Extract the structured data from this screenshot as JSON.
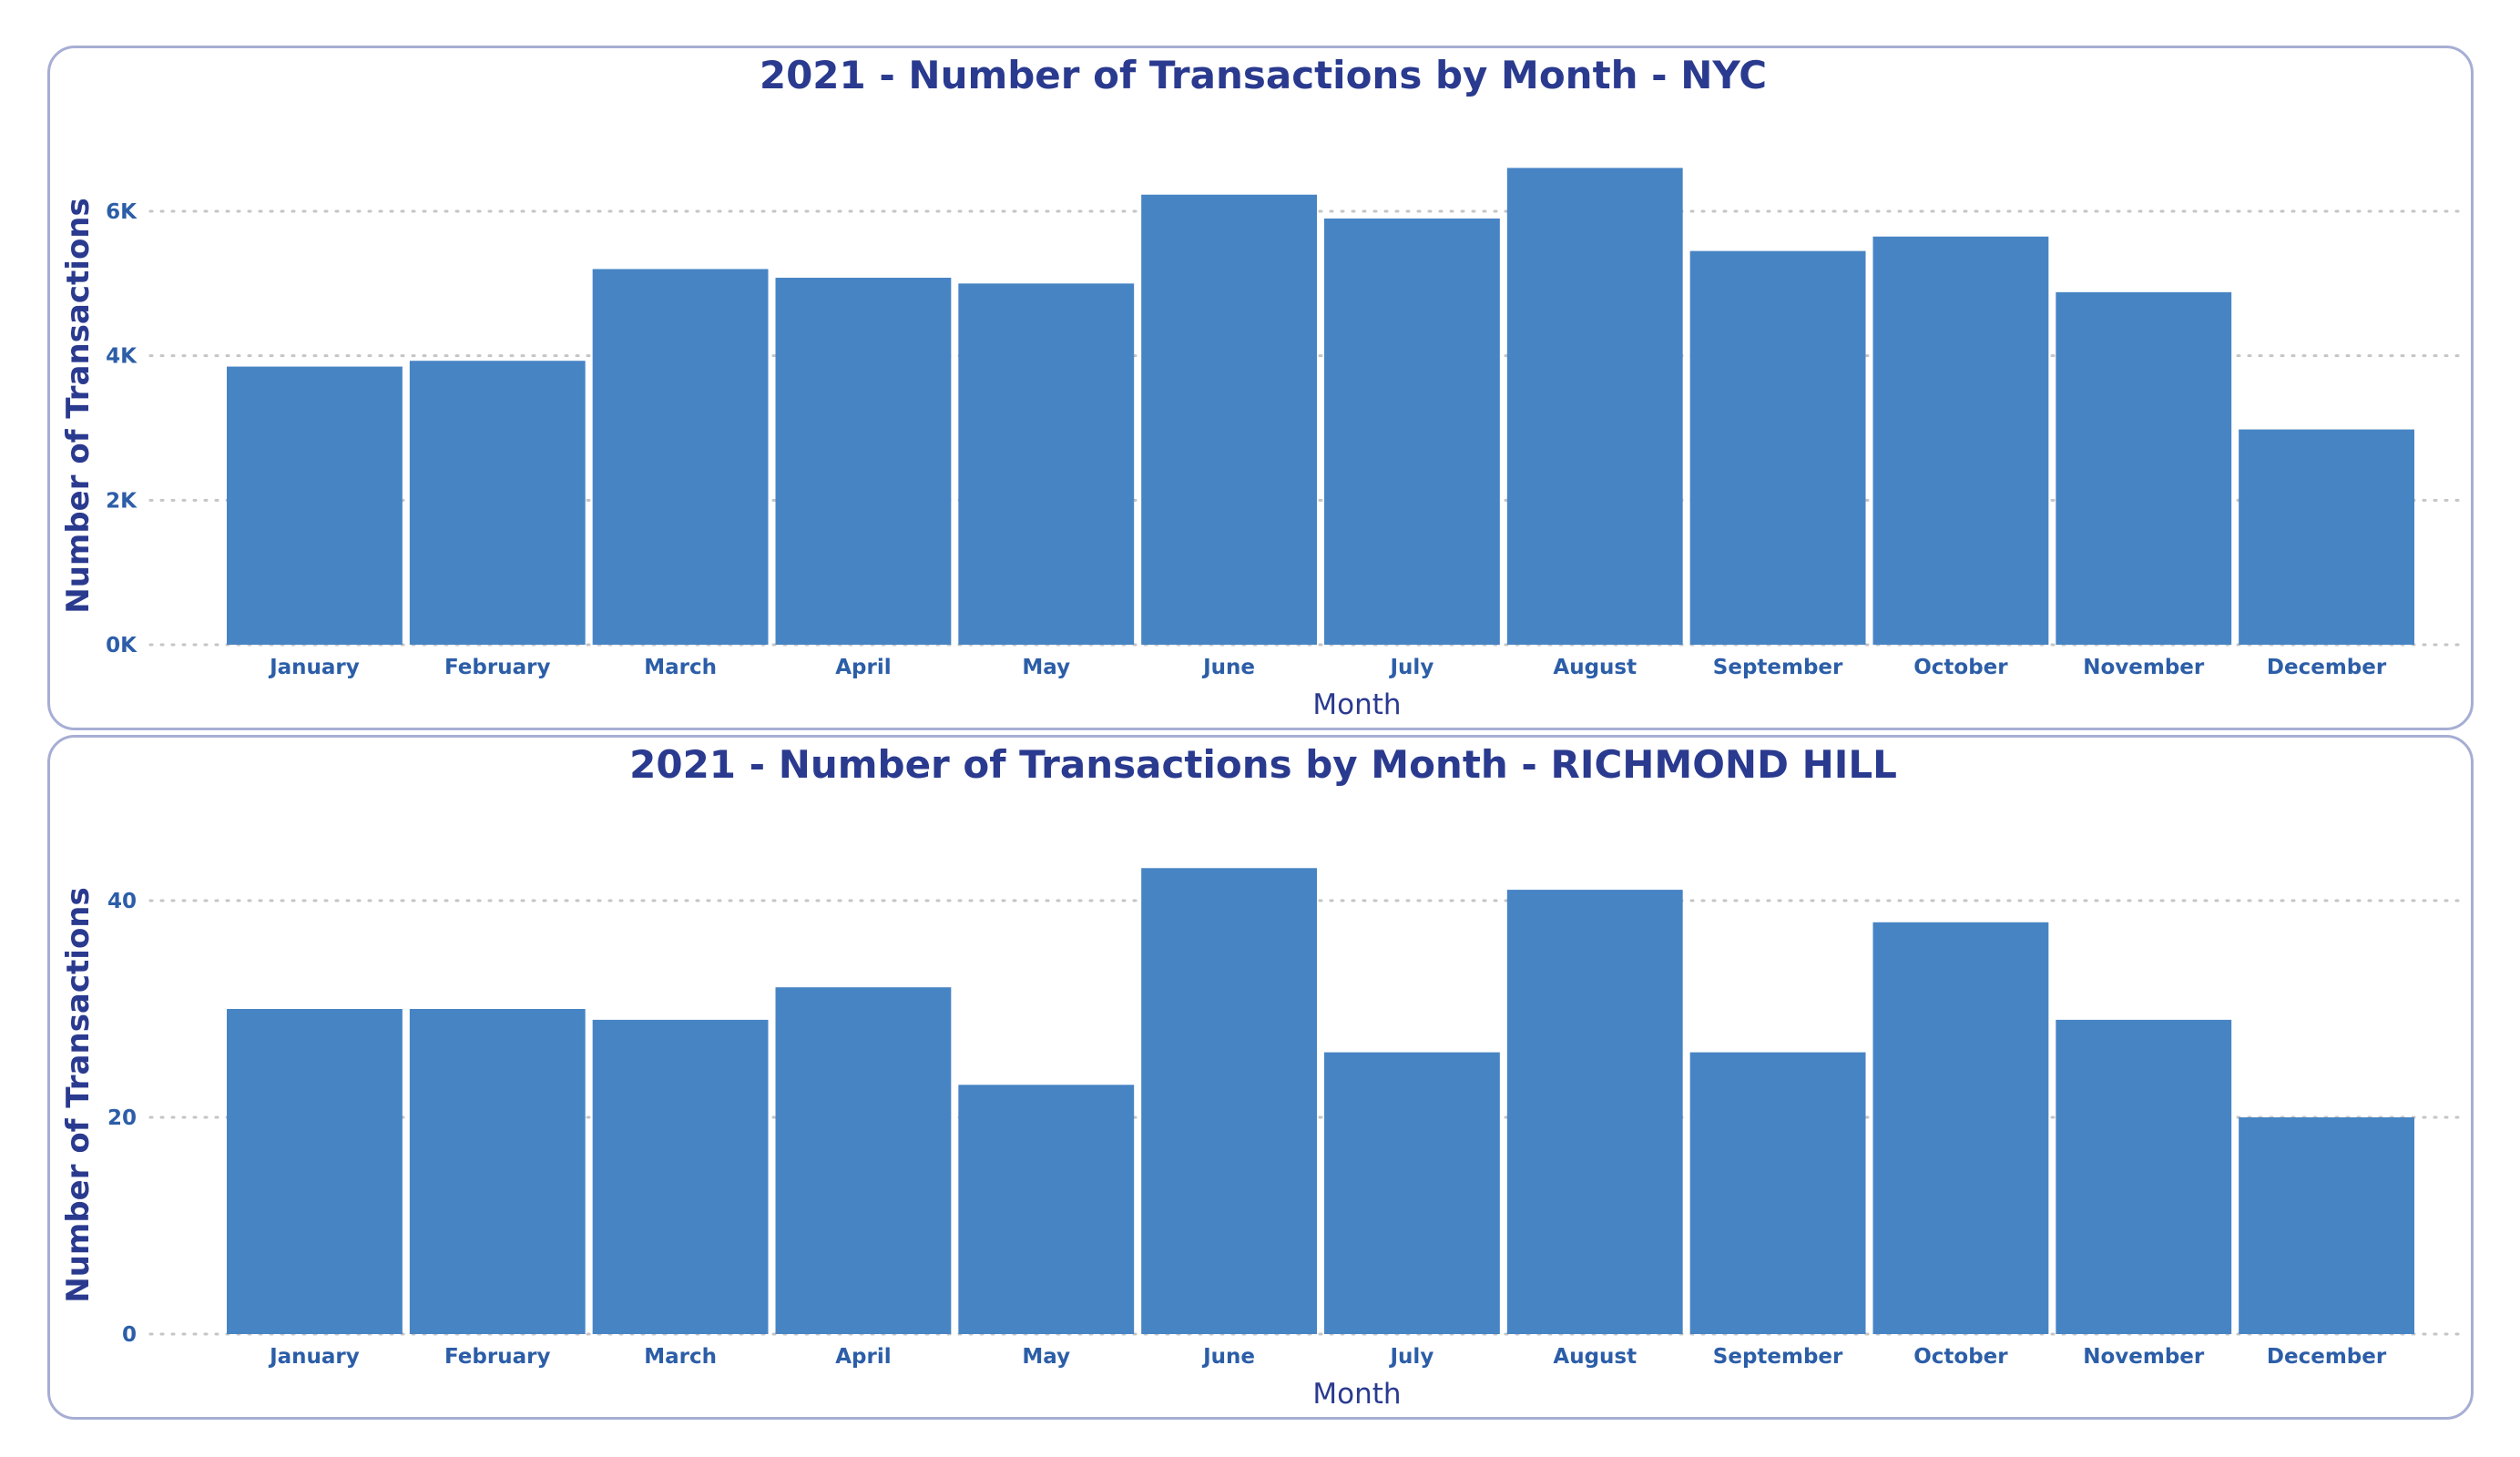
{
  "chart_data": [
    {
      "type": "bar",
      "title": "2021 - Number of Transactions by Month - NYC",
      "xlabel": "Month",
      "ylabel": "Number of Transactions",
      "categories": [
        "January",
        "February",
        "March",
        "April",
        "May",
        "June",
        "July",
        "August",
        "September",
        "October",
        "November",
        "December"
      ],
      "values": [
        3850,
        3930,
        5200,
        5080,
        5000,
        6230,
        5900,
        6600,
        5450,
        5650,
        4880,
        2980
      ],
      "ylim": [
        0,
        7500
      ],
      "yticks": [
        0,
        2000,
        4000,
        6000
      ],
      "ytick_labels": [
        "0K",
        "2K",
        "4K",
        "6K"
      ],
      "grid": true,
      "bar_color": "#4784c4"
    },
    {
      "type": "bar",
      "title": "2021 - Number of Transactions by Month - RICHMOND HILL",
      "xlabel": "Month",
      "ylabel": "Number of Transactions",
      "categories": [
        "January",
        "February",
        "March",
        "April",
        "May",
        "June",
        "July",
        "August",
        "September",
        "October",
        "November",
        "December"
      ],
      "values": [
        30,
        30,
        29,
        32,
        23,
        43,
        26,
        41,
        26,
        38,
        29,
        20
      ],
      "ylim": [
        0,
        50
      ],
      "yticks": [
        0,
        20,
        40
      ],
      "ytick_labels": [
        "0",
        "20",
        "40"
      ],
      "grid": true,
      "bar_color": "#4784c4"
    }
  ],
  "colors": {
    "title": "#2a3a8f",
    "tick": "#2c5ea8",
    "bar": "#4784c4",
    "border": "#a7aed4"
  }
}
